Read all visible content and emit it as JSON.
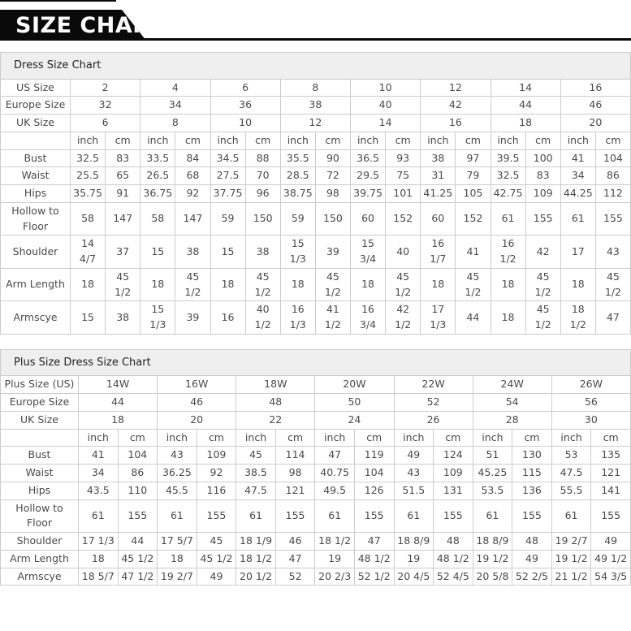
{
  "banner": {
    "title": "SIZE CHART:"
  },
  "units": [
    "inch",
    "cm"
  ],
  "colors": {
    "banner_bg": "#0a0a0a",
    "title_row_bg": "#efefef",
    "label_col_bg": "#f7f7f7",
    "border": "#cccccc",
    "text": "#4a4a4a"
  },
  "tables": [
    {
      "title": "Dress Size Chart",
      "size_rows": [
        {
          "label": "US Size",
          "values": [
            "2",
            "4",
            "6",
            "8",
            "10",
            "12",
            "14",
            "16"
          ]
        },
        {
          "label": "Europe Size",
          "values": [
            "32",
            "34",
            "36",
            "38",
            "40",
            "42",
            "44",
            "46"
          ]
        },
        {
          "label": "UK Size",
          "values": [
            "6",
            "8",
            "10",
            "12",
            "14",
            "16",
            "18",
            "20"
          ]
        }
      ],
      "measure_rows": [
        {
          "label": "Bust",
          "values": [
            "32.5",
            "83",
            "33.5",
            "84",
            "34.5",
            "88",
            "35.5",
            "90",
            "36.5",
            "93",
            "38",
            "97",
            "39.5",
            "100",
            "41",
            "104"
          ]
        },
        {
          "label": "Waist",
          "values": [
            "25.5",
            "65",
            "26.5",
            "68",
            "27.5",
            "70",
            "28.5",
            "72",
            "29.5",
            "75",
            "31",
            "79",
            "32.5",
            "83",
            "34",
            "86"
          ]
        },
        {
          "label": "Hips",
          "values": [
            "35.75",
            "91",
            "36.75",
            "92",
            "37.75",
            "96",
            "38.75",
            "98",
            "39.75",
            "101",
            "41.25",
            "105",
            "42.75",
            "109",
            "44.25",
            "112"
          ]
        },
        {
          "label": "Hollow to Floor",
          "values": [
            "58",
            "147",
            "58",
            "147",
            "59",
            "150",
            "59",
            "150",
            "60",
            "152",
            "60",
            "152",
            "61",
            "155",
            "61",
            "155"
          ]
        },
        {
          "label": "Shoulder",
          "values": [
            "14 4/7",
            "37",
            "15",
            "38",
            "15",
            "38",
            "15 1/3",
            "39",
            "15 3/4",
            "40",
            "16 1/7",
            "41",
            "16 1/2",
            "42",
            "17",
            "43"
          ]
        },
        {
          "label": "Arm Length",
          "values": [
            "18",
            "45 1/2",
            "18",
            "45 1/2",
            "18",
            "45 1/2",
            "18",
            "45 1/2",
            "18",
            "45 1/2",
            "18",
            "45 1/2",
            "18",
            "45 1/2",
            "18",
            "45 1/2"
          ]
        },
        {
          "label": "Armscye",
          "values": [
            "15",
            "38",
            "15 1/3",
            "39",
            "16",
            "40 1/2",
            "16 1/3",
            "41 1/2",
            "16 3/4",
            "42 1/2",
            "17 1/3",
            "44",
            "18",
            "45 1/2",
            "18 1/2",
            "47"
          ]
        }
      ]
    },
    {
      "title": "Plus Size Dress Size Chart",
      "size_rows": [
        {
          "label": "Plus Size (US)",
          "values": [
            "14W",
            "16W",
            "18W",
            "20W",
            "22W",
            "24W",
            "26W"
          ]
        },
        {
          "label": "Europe Size",
          "values": [
            "44",
            "46",
            "48",
            "50",
            "52",
            "54",
            "56"
          ]
        },
        {
          "label": "UK Size",
          "values": [
            "18",
            "20",
            "22",
            "24",
            "26",
            "28",
            "30"
          ]
        }
      ],
      "measure_rows": [
        {
          "label": "Bust",
          "values": [
            "41",
            "104",
            "43",
            "109",
            "45",
            "114",
            "47",
            "119",
            "49",
            "124",
            "51",
            "130",
            "53",
            "135"
          ]
        },
        {
          "label": "Waist",
          "values": [
            "34",
            "86",
            "36.25",
            "92",
            "38.5",
            "98",
            "40.75",
            "104",
            "43",
            "109",
            "45.25",
            "115",
            "47.5",
            "121"
          ]
        },
        {
          "label": "Hips",
          "values": [
            "43.5",
            "110",
            "45.5",
            "116",
            "47.5",
            "121",
            "49.5",
            "126",
            "51.5",
            "131",
            "53.5",
            "136",
            "55.5",
            "141"
          ]
        },
        {
          "label": "Hollow to Floor",
          "values": [
            "61",
            "155",
            "61",
            "155",
            "61",
            "155",
            "61",
            "155",
            "61",
            "155",
            "61",
            "155",
            "61",
            "155"
          ]
        },
        {
          "label": "Shoulder",
          "values": [
            "17 1/3",
            "44",
            "17 5/7",
            "45",
            "18 1/9",
            "46",
            "18 1/2",
            "47",
            "18 8/9",
            "48",
            "18 8/9",
            "48",
            "19 2/7",
            "49"
          ]
        },
        {
          "label": "Arm Length",
          "values": [
            "18",
            "45 1/2",
            "18",
            "45 1/2",
            "18 1/2",
            "47",
            "19",
            "48 1/2",
            "19",
            "48 1/2",
            "19 1/2",
            "49",
            "19 1/2",
            "49 1/2"
          ]
        },
        {
          "label": "Armscye",
          "values": [
            "18 5/7",
            "47 1/2",
            "19 2/7",
            "49",
            "20 1/2",
            "52",
            "20 2/3",
            "52 1/2",
            "20 4/5",
            "52 4/5",
            "20 5/8",
            "52 2/5",
            "21 1/2",
            "54 3/5"
          ]
        }
      ]
    }
  ]
}
